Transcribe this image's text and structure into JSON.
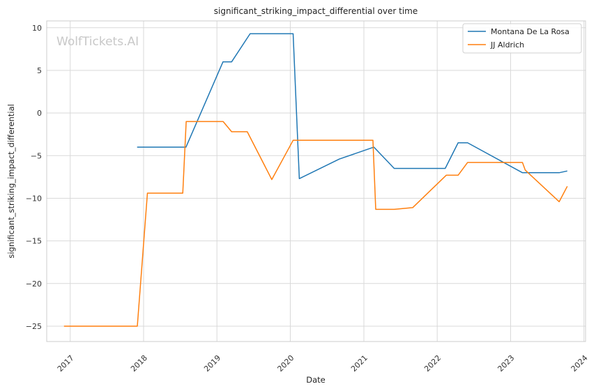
{
  "watermark": "WolfTickets.AI",
  "chart_data": {
    "type": "line",
    "title": "significant_striking_impact_differential over time",
    "xlabel": "Date",
    "ylabel": "significant_striking_impact_differential",
    "x_ticks": [
      "2017",
      "2018",
      "2019",
      "2020",
      "2021",
      "2022",
      "2023",
      "2024"
    ],
    "y_ticks": [
      10,
      5,
      0,
      -5,
      -10,
      -15,
      -20,
      -25
    ],
    "xlim": [
      "2016-09-06",
      "2024-01-09"
    ],
    "ylim": [
      -26.8,
      10.8
    ],
    "grid": true,
    "legend_position": "top-right",
    "series": [
      {
        "name": "Montana De La Rosa",
        "color": "#1f77b4",
        "points": [
          [
            "2017-11-30",
            -4
          ],
          [
            "2018-07-31",
            -4
          ],
          [
            "2019-01-31",
            6
          ],
          [
            "2019-03-15",
            6
          ],
          [
            "2019-06-15",
            9.3
          ],
          [
            "2020-01-15",
            9.3
          ],
          [
            "2020-02-15",
            -7.7
          ],
          [
            "2020-09-01",
            -5.4
          ],
          [
            "2021-02-20",
            -4
          ],
          [
            "2021-06-01",
            -6.5
          ],
          [
            "2022-02-10",
            -6.5
          ],
          [
            "2022-04-15",
            -3.5
          ],
          [
            "2022-06-01",
            -3.5
          ],
          [
            "2023-03-01",
            -7
          ],
          [
            "2023-08-31",
            -7
          ],
          [
            "2023-10-10",
            -6.8
          ]
        ]
      },
      {
        "name": "JJ Aldrich",
        "color": "#ff7f0e",
        "points": [
          [
            "2016-12-01",
            -25
          ],
          [
            "2017-12-01",
            -25
          ],
          [
            "2018-01-20",
            -9.4
          ],
          [
            "2018-07-15",
            -9.4
          ],
          [
            "2018-08-01",
            -1
          ],
          [
            "2019-02-01",
            -1
          ],
          [
            "2019-03-15",
            -2.2
          ],
          [
            "2019-06-01",
            -2.2
          ],
          [
            "2019-10-01",
            -7.8
          ],
          [
            "2020-01-15",
            -3.2
          ],
          [
            "2021-02-15",
            -3.2
          ],
          [
            "2021-03-01",
            -11.3
          ],
          [
            "2021-06-01",
            -11.3
          ],
          [
            "2021-09-01",
            -11.1
          ],
          [
            "2022-02-15",
            -7.3
          ],
          [
            "2022-04-15",
            -7.3
          ],
          [
            "2022-06-01",
            -5.8
          ],
          [
            "2023-03-01",
            -5.8
          ],
          [
            "2023-03-15",
            -6.7
          ],
          [
            "2023-08-31",
            -10.4
          ],
          [
            "2023-10-10",
            -8.6
          ]
        ]
      }
    ]
  }
}
